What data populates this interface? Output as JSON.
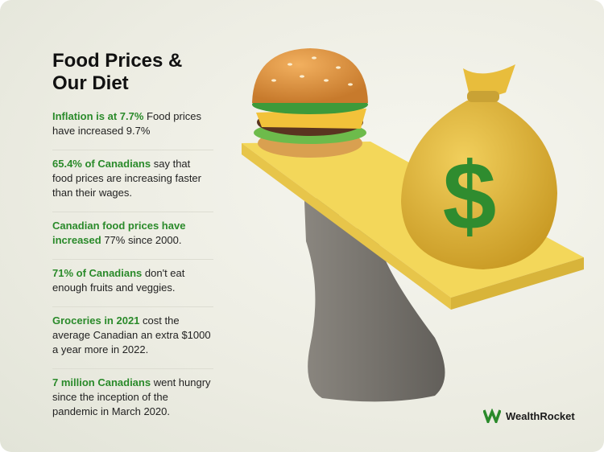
{
  "header": {
    "title": "Food Prices & Our Diet"
  },
  "facts": [
    {
      "highlight": "Inflation is at 7.7%",
      "text": "Food prices have increased 9.7%"
    },
    {
      "highlight": "65.4% of Canadians",
      "text": "say that food prices are increasing faster than their wages."
    },
    {
      "highlight": "Canadian food prices have increased",
      "text": "77% since 2000."
    },
    {
      "highlight": "71% of Canadians",
      "text": "don't eat enough fruits and veggies."
    },
    {
      "highlight": "Groceries in 2021",
      "text": "cost the average Canadian an extra $1000 a year more in 2022."
    },
    {
      "highlight": "7 million Canadians",
      "text": "went hungry since the inception of the pandemic in March 2020."
    }
  ],
  "illustration": {
    "bag_symbol": "$"
  },
  "brand": {
    "name": "WealthRocket"
  }
}
